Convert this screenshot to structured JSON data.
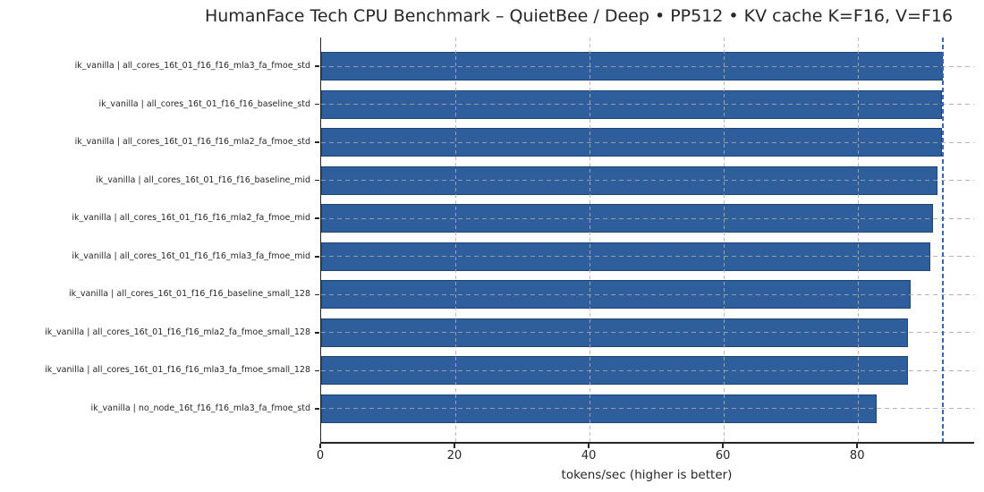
{
  "chart_data": {
    "type": "bar",
    "orientation": "horizontal",
    "title": "HumanFace Tech CPU Benchmark – QuietBee / Deep • PP512 • KV cache K=F16, V=F16",
    "xlabel": "tokens/sec (higher is better)",
    "categories": [
      "ik_vanilla | all_cores_16t_01_f16_f16_mla3_fa_fmoe_std",
      "ik_vanilla | all_cores_16t_01_f16_f16_baseline_std",
      "ik_vanilla | all_cores_16t_01_f16_f16_mla2_fa_fmoe_std",
      "ik_vanilla | all_cores_16t_01_f16_f16_baseline_mid",
      "ik_vanilla | all_cores_16t_01_f16_f16_mla2_fa_fmoe_mid",
      "ik_vanilla | all_cores_16t_01_f16_f16_mla3_fa_fmoe_mid",
      "ik_vanilla | all_cores_16t_01_f16_f16_baseline_small_128",
      "ik_vanilla | all_cores_16t_01_f16_f16_mla2_fa_fmoe_small_128",
      "ik_vanilla | all_cores_16t_01_f16_f16_mla3_fa_fmoe_small_128",
      "ik_vanilla | no_node_16t_f16_f16_mla3_fa_fmoe_std"
    ],
    "values": [
      92.6,
      92.5,
      92.5,
      91.8,
      91.2,
      90.8,
      87.8,
      87.5,
      87.4,
      82.8
    ],
    "xlim": [
      0,
      97.3
    ],
    "xticks": [
      0,
      20,
      40,
      60,
      80
    ],
    "reference_line": {
      "value": 92.6,
      "style": "dashed"
    },
    "grid": {
      "axis": "both",
      "linestyle": "dashed",
      "above_bars": true
    },
    "legend": "none",
    "colors": {
      "bar": "#2e5f9c",
      "bar_edge": "#1f4574",
      "reference_line": "#3767b1",
      "grid": "#c9c9c9",
      "spine": "#262626",
      "text": "#262626"
    }
  }
}
